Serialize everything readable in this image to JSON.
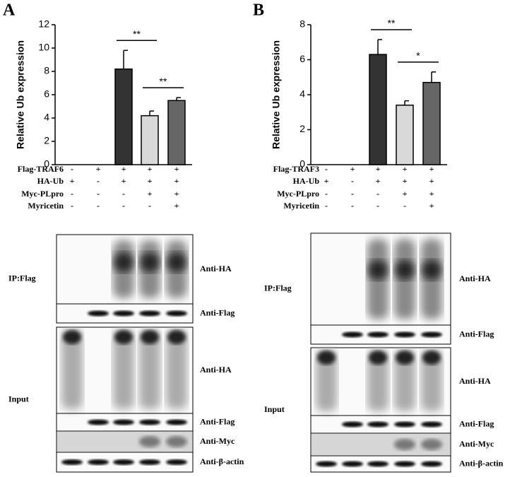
{
  "chart_data": [
    {
      "type": "bar",
      "panel": "A",
      "ylabel": "Relative Ub expression",
      "categories": [
        null,
        null,
        null,
        null,
        null
      ],
      "values": [
        0,
        0,
        8.2,
        4.2,
        5.5
      ],
      "errors": [
        null,
        null,
        1.6,
        0.4,
        0.25
      ],
      "colors": [
        "#333333",
        "#333333",
        "#333333",
        "#d9d9d9",
        "#666666"
      ],
      "ylim": [
        0,
        12
      ],
      "yticks": [
        0,
        2,
        4,
        6,
        8,
        10,
        12
      ],
      "annotations": [
        {
          "text": "**",
          "between": [
            2,
            3
          ]
        },
        {
          "text": "**",
          "between": [
            3,
            4
          ]
        }
      ],
      "treatments": [
        {
          "label": "Flag-TRAF6",
          "marks": [
            "-",
            "+",
            "+",
            "+",
            "+"
          ]
        },
        {
          "label": "HA-Ub",
          "marks": [
            "+",
            "-",
            "+",
            "+",
            "+"
          ]
        },
        {
          "label": "Myc-PLpro",
          "marks": [
            "-",
            "-",
            "-",
            "+",
            "+"
          ]
        },
        {
          "label": "Myricetin",
          "marks": [
            "-",
            "-",
            "-",
            "-",
            "+"
          ]
        }
      ],
      "blots": [
        {
          "group": "IP:Flag",
          "rows": [
            "Anti-HA",
            "Anti-Flag"
          ]
        },
        {
          "group": "Input",
          "rows": [
            "Anti-HA",
            "Anti-Flag",
            "Anti-Myc",
            "Anti-β-actin"
          ]
        }
      ]
    },
    {
      "type": "bar",
      "panel": "B",
      "ylabel": "Relative Ub expression",
      "categories": [
        null,
        null,
        null,
        null,
        null
      ],
      "values": [
        0,
        0,
        6.3,
        3.4,
        4.7
      ],
      "errors": [
        null,
        null,
        0.85,
        0.25,
        0.6
      ],
      "colors": [
        "#333333",
        "#333333",
        "#333333",
        "#d9d9d9",
        "#666666"
      ],
      "ylim": [
        0,
        8
      ],
      "yticks": [
        0,
        2,
        4,
        6,
        8
      ],
      "annotations": [
        {
          "text": "**",
          "between": [
            2,
            3
          ]
        },
        {
          "text": "*",
          "between": [
            3,
            4
          ]
        }
      ],
      "treatments": [
        {
          "label": "Flag-TRAF3",
          "marks": [
            "-",
            "+",
            "+",
            "+",
            "+"
          ]
        },
        {
          "label": "HA-Ub",
          "marks": [
            "+",
            "-",
            "+",
            "+",
            "+"
          ]
        },
        {
          "label": "Myc-PLpro",
          "marks": [
            "-",
            "-",
            "-",
            "+",
            "+"
          ]
        },
        {
          "label": "Myricetin",
          "marks": [
            "-",
            "-",
            "-",
            "-",
            "+"
          ]
        }
      ],
      "blots": [
        {
          "group": "IP:Flag",
          "rows": [
            "Anti-HA",
            "Anti-Flag"
          ]
        },
        {
          "group": "Input",
          "rows": [
            "Anti-HA",
            "Anti-Flag",
            "Anti-Myc",
            "Anti-β-actin"
          ]
        }
      ]
    }
  ]
}
